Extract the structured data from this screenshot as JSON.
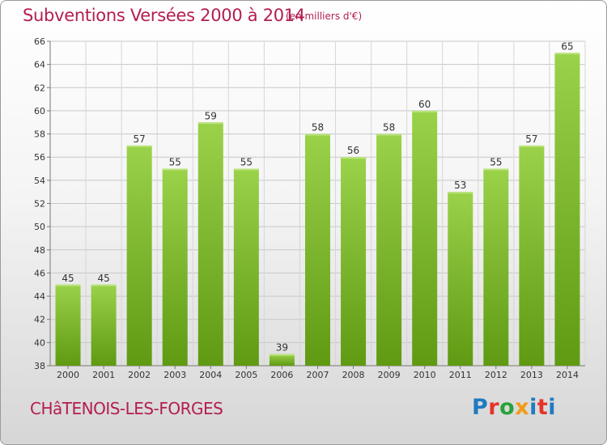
{
  "header": {
    "title": "Subventions Versées 2000 à 2014",
    "subtitle": "(en milliers d'€)"
  },
  "footer": {
    "place": "CHâTENOIS-LES-FORGES",
    "logo": "Proxiti"
  },
  "colors": {
    "bar_top": "#9ad24a",
    "bar_bottom": "#5f9a12",
    "title": "#b31d52"
  },
  "chart_data": {
    "type": "bar",
    "title": "Subventions Versées 2000 à 2014",
    "subtitle": "(en milliers d'€)",
    "categories": [
      "2000",
      "2001",
      "2002",
      "2003",
      "2004",
      "2005",
      "2006",
      "2007",
      "2008",
      "2009",
      "2010",
      "2011",
      "2012",
      "2013",
      "2014"
    ],
    "values": [
      45,
      45,
      57,
      55,
      59,
      55,
      39,
      58,
      56,
      58,
      60,
      53,
      55,
      57,
      65
    ],
    "yticks": [
      38,
      40,
      42,
      44,
      46,
      48,
      50,
      52,
      54,
      56,
      58,
      60,
      62,
      64,
      66
    ],
    "ylim": [
      38,
      66
    ],
    "grid": true,
    "xlabel": "",
    "ylabel": ""
  }
}
